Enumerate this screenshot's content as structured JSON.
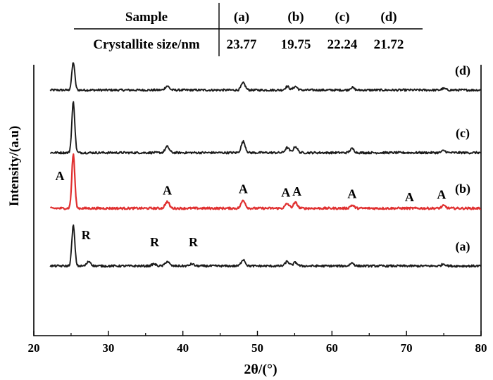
{
  "table": {
    "header": [
      "Sample",
      "(a)",
      "(b)",
      "(c)",
      "(d)"
    ],
    "row": [
      "Crystallite size/nm",
      "23.77",
      "19.75",
      "22.24",
      "21.72"
    ]
  },
  "chart_data": {
    "type": "line",
    "xlabel": "2θ/(°)",
    "ylabel": "Intensity/(a.u)",
    "xlim": [
      20,
      80
    ],
    "x_ticks": [
      20,
      30,
      40,
      50,
      60,
      70,
      80
    ],
    "colors": {
      "a": "#1a1a1a",
      "b": "#e03030",
      "c": "#1a1a1a",
      "d": "#1a1a1a"
    },
    "series": [
      {
        "name": "(d)",
        "baseline_intensity": 10,
        "peaks": [
          [
            25.3,
            55
          ],
          [
            37.9,
            8
          ],
          [
            48.1,
            14
          ],
          [
            54.0,
            7
          ],
          [
            55.1,
            7
          ],
          [
            62.7,
            5
          ],
          [
            75.0,
            3
          ]
        ]
      },
      {
        "name": "(c)",
        "baseline_intensity": 10,
        "peaks": [
          [
            25.3,
            100
          ],
          [
            37.9,
            12
          ],
          [
            48.1,
            22
          ],
          [
            54.0,
            10
          ],
          [
            55.1,
            12
          ],
          [
            62.7,
            8
          ],
          [
            75.0,
            4
          ]
        ]
      },
      {
        "name": "(b)",
        "baseline_intensity": 10,
        "peaks": [
          [
            25.3,
            107
          ],
          [
            37.9,
            13
          ],
          [
            48.1,
            16
          ],
          [
            54.0,
            9
          ],
          [
            55.1,
            11
          ],
          [
            62.7,
            6
          ],
          [
            75.0,
            5
          ]
        ]
      },
      {
        "name": "(a)",
        "baseline_intensity": 10,
        "peaks": [
          [
            25.3,
            80
          ],
          [
            27.4,
            9
          ],
          [
            36.1,
            4
          ],
          [
            37.9,
            9
          ],
          [
            41.2,
            4
          ],
          [
            48.1,
            13
          ],
          [
            54.0,
            9
          ],
          [
            55.1,
            7
          ],
          [
            62.7,
            6
          ],
          [
            75.0,
            4
          ]
        ]
      }
    ],
    "annotations": [
      {
        "text": "A",
        "x": 23.5,
        "series": "(b)"
      },
      {
        "text": "A",
        "x": 37.9,
        "series": "(b)"
      },
      {
        "text": "A",
        "x": 48.1,
        "series": "(b)"
      },
      {
        "text": "A",
        "x": 53.8,
        "series": "(b)"
      },
      {
        "text": "A",
        "x": 55.3,
        "series": "(b)"
      },
      {
        "text": "A",
        "x": 62.7,
        "series": "(b)"
      },
      {
        "text": "A",
        "x": 70.4,
        "series": "(b)"
      },
      {
        "text": "A",
        "x": 74.7,
        "series": "(b)"
      },
      {
        "text": "R",
        "x": 27.0,
        "series": "(a)"
      },
      {
        "text": "R",
        "x": 36.2,
        "series": "(a)"
      },
      {
        "text": "R",
        "x": 41.4,
        "series": "(a)"
      }
    ]
  }
}
